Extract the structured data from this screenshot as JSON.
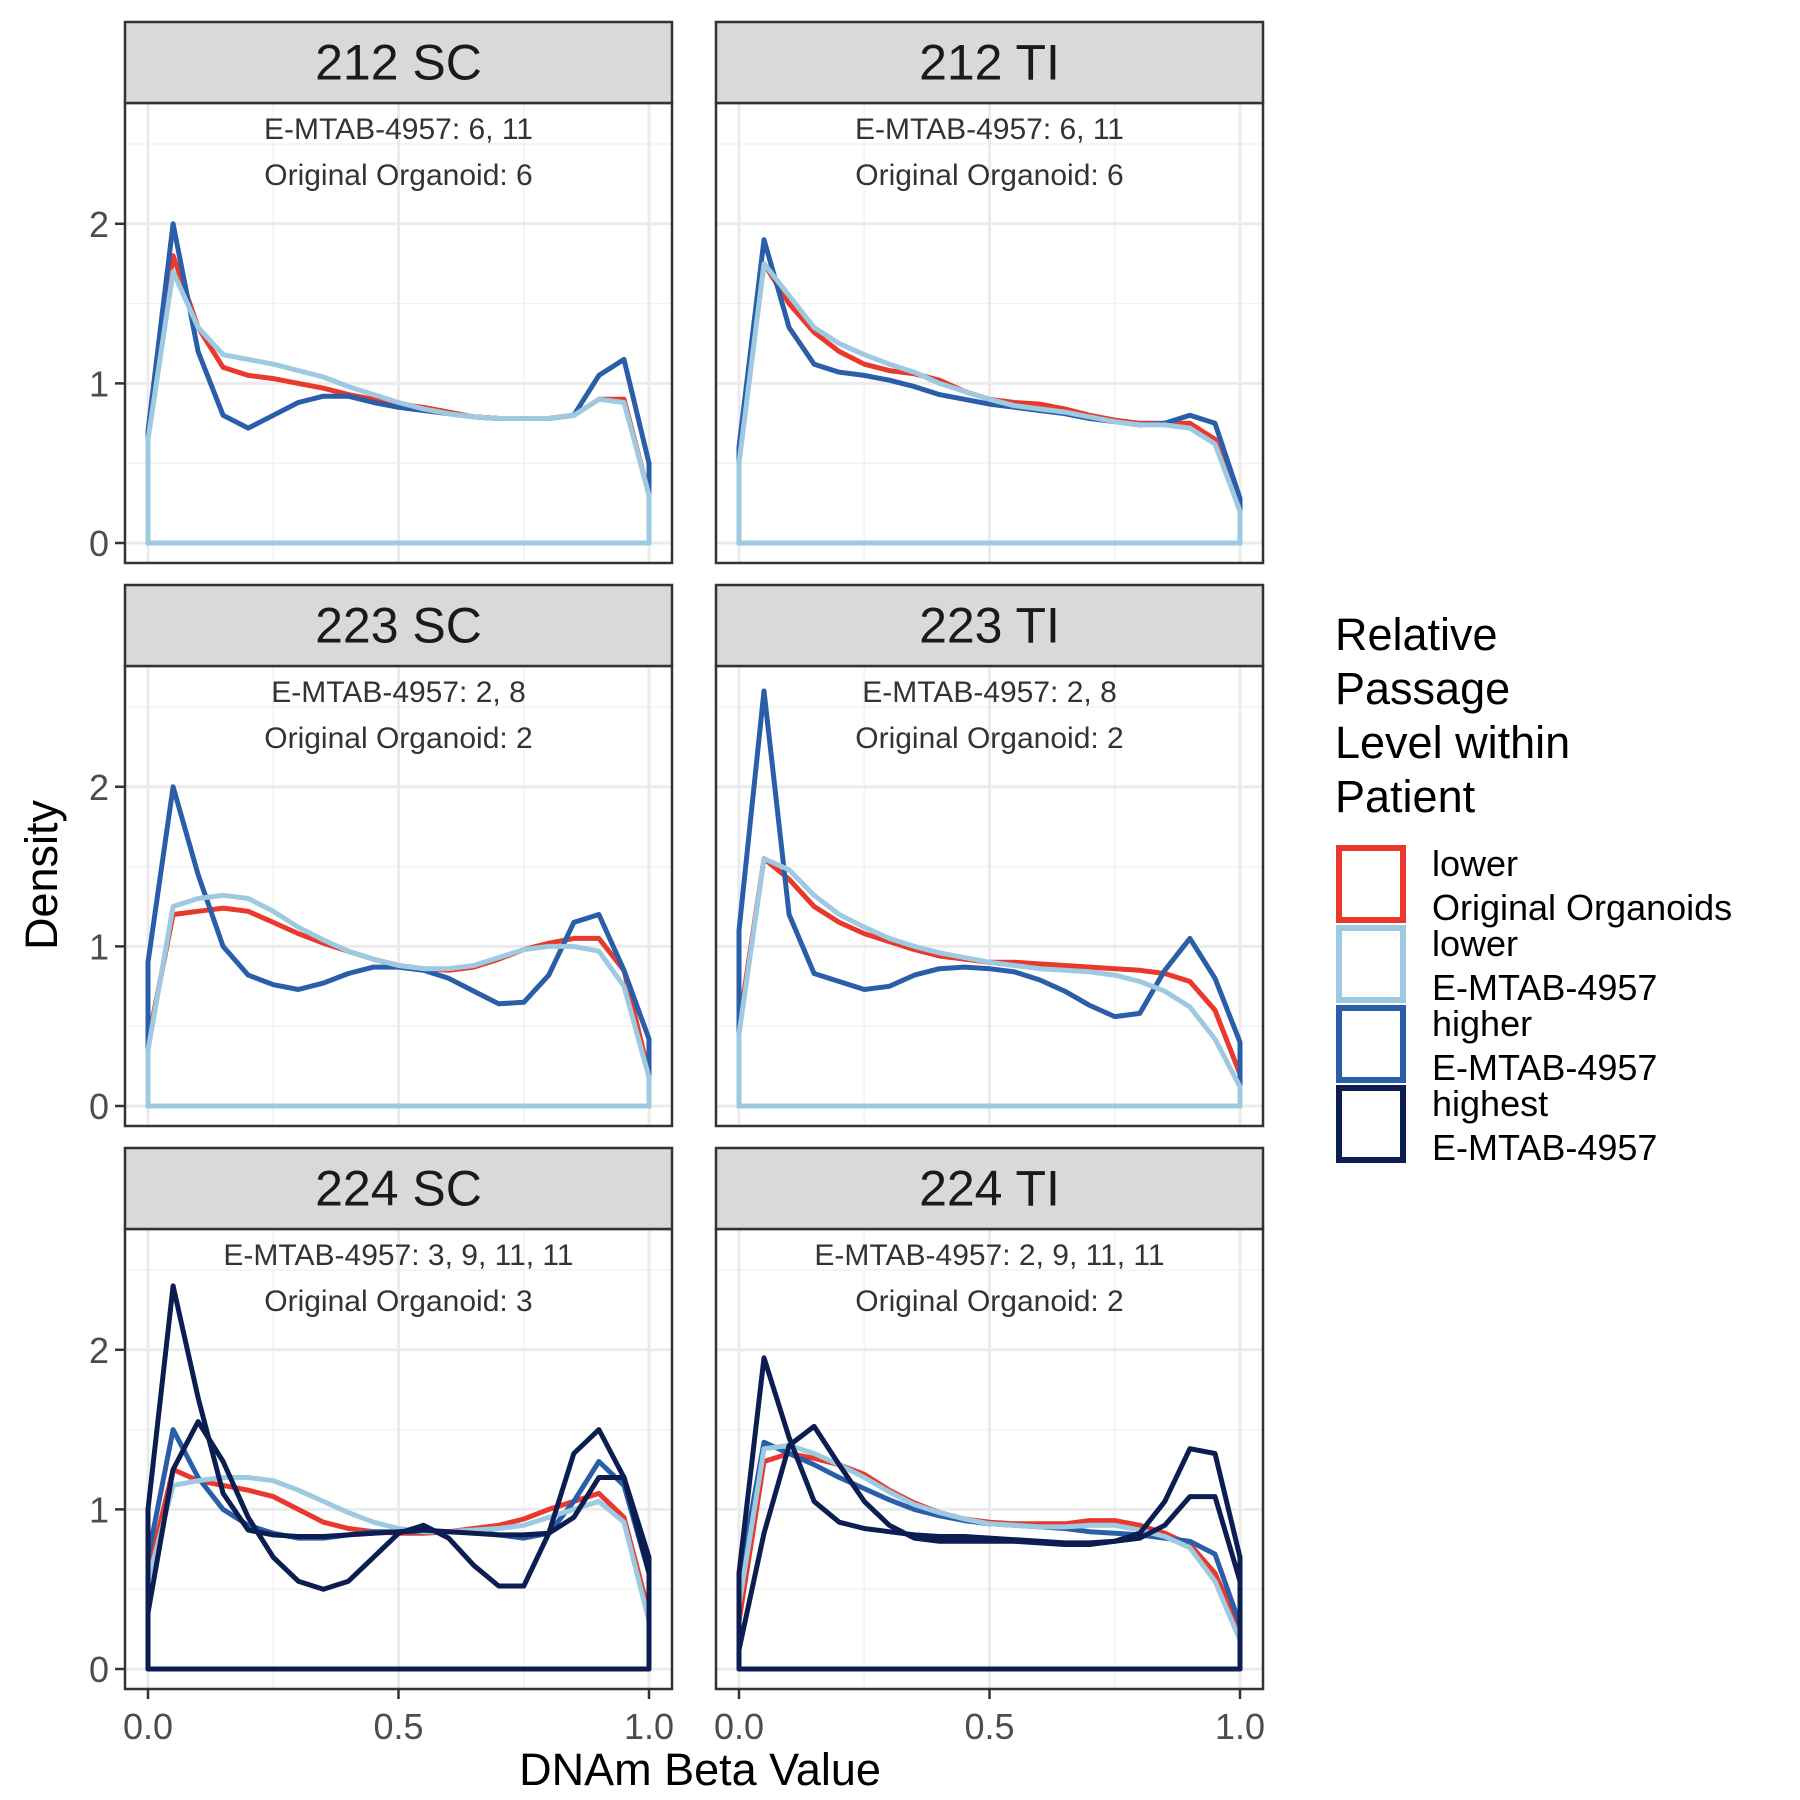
{
  "chart_data": {
    "type": "line",
    "subtype": "faceted density plot",
    "xlabel": "DNAm Beta Value",
    "ylabel": "Density",
    "xlim": [
      0,
      1
    ],
    "ylim": [
      0,
      2.6
    ],
    "x_ticks": [
      0.0,
      0.5,
      1.0
    ],
    "x_tick_labels": [
      "0.0",
      "0.5",
      "1.0"
    ],
    "y_ticks": [
      0,
      1,
      2
    ],
    "y_tick_labels": [
      "0",
      "1",
      "2"
    ],
    "grid": true,
    "legend": {
      "title_lines": [
        "Relative",
        "Passage",
        "Level within",
        "Patient"
      ],
      "placement": "right",
      "entries": [
        {
          "key": "lower_oo",
          "lines": [
            "lower",
            "Original Organoids"
          ],
          "color": "#e8392c"
        },
        {
          "key": "lower_em",
          "lines": [
            "lower",
            "E-MTAB-4957"
          ],
          "color": "#9ecae1"
        },
        {
          "key": "higher_em",
          "lines": [
            "higher",
            "E-MTAB-4957"
          ],
          "color": "#2a5ea8"
        },
        {
          "key": "highest_em",
          "lines": [
            "highest",
            "E-MTAB-4957"
          ],
          "color": "#0b1d51"
        }
      ]
    },
    "x": [
      0.0,
      0.05,
      0.1,
      0.15,
      0.2,
      0.25,
      0.3,
      0.35,
      0.4,
      0.45,
      0.5,
      0.55,
      0.6,
      0.65,
      0.7,
      0.75,
      0.8,
      0.85,
      0.9,
      0.95,
      1.0
    ],
    "panels": [
      {
        "strip": "212 SC",
        "annotation_lines": [
          "E-MTAB-4957: 6, 11",
          "Original Organoid: 6"
        ],
        "series": [
          {
            "key": "lower_oo",
            "values": [
              0.7,
              1.8,
              1.35,
              1.1,
              1.05,
              1.03,
              1.0,
              0.97,
              0.93,
              0.9,
              0.87,
              0.85,
              0.82,
              0.79,
              0.78,
              0.78,
              0.78,
              0.8,
              0.9,
              0.9,
              0.3
            ]
          },
          {
            "key": "higher_em",
            "values": [
              0.7,
              2.0,
              1.2,
              0.8,
              0.72,
              0.8,
              0.88,
              0.92,
              0.92,
              0.88,
              0.85,
              0.83,
              0.81,
              0.79,
              0.78,
              0.78,
              0.78,
              0.8,
              1.05,
              1.15,
              0.5
            ]
          },
          {
            "key": "lower_em",
            "values": [
              0.65,
              1.7,
              1.35,
              1.18,
              1.15,
              1.12,
              1.08,
              1.04,
              0.98,
              0.93,
              0.88,
              0.84,
              0.81,
              0.79,
              0.78,
              0.78,
              0.78,
              0.8,
              0.9,
              0.88,
              0.3
            ]
          }
        ]
      },
      {
        "strip": "212 TI",
        "annotation_lines": [
          "E-MTAB-4957: 6, 11",
          "Original Organoid: 6"
        ],
        "series": [
          {
            "key": "lower_oo",
            "values": [
              0.55,
              1.75,
              1.5,
              1.32,
              1.2,
              1.12,
              1.08,
              1.06,
              1.02,
              0.95,
              0.9,
              0.88,
              0.87,
              0.84,
              0.8,
              0.77,
              0.75,
              0.75,
              0.75,
              0.65,
              0.2
            ]
          },
          {
            "key": "higher_em",
            "values": [
              0.6,
              1.9,
              1.35,
              1.12,
              1.07,
              1.05,
              1.02,
              0.98,
              0.93,
              0.9,
              0.87,
              0.85,
              0.83,
              0.81,
              0.78,
              0.76,
              0.74,
              0.75,
              0.8,
              0.75,
              0.28
            ]
          },
          {
            "key": "lower_em",
            "values": [
              0.5,
              1.75,
              1.55,
              1.35,
              1.25,
              1.18,
              1.12,
              1.07,
              1.0,
              0.95,
              0.9,
              0.86,
              0.84,
              0.82,
              0.79,
              0.76,
              0.74,
              0.74,
              0.72,
              0.62,
              0.2
            ]
          }
        ]
      },
      {
        "strip": "223 SC",
        "annotation_lines": [
          "E-MTAB-4957: 2, 8",
          "Original Organoid: 2"
        ],
        "series": [
          {
            "key": "lower_oo",
            "values": [
              0.4,
              1.2,
              1.22,
              1.24,
              1.22,
              1.15,
              1.08,
              1.02,
              0.97,
              0.92,
              0.88,
              0.86,
              0.85,
              0.87,
              0.92,
              0.98,
              1.02,
              1.05,
              1.05,
              0.85,
              0.2
            ]
          },
          {
            "key": "higher_em",
            "values": [
              0.9,
              2.0,
              1.45,
              1.0,
              0.82,
              0.76,
              0.73,
              0.77,
              0.83,
              0.87,
              0.87,
              0.85,
              0.8,
              0.72,
              0.64,
              0.65,
              0.82,
              1.15,
              1.2,
              0.85,
              0.42
            ]
          },
          {
            "key": "lower_em",
            "values": [
              0.35,
              1.25,
              1.3,
              1.32,
              1.3,
              1.22,
              1.12,
              1.04,
              0.97,
              0.92,
              0.88,
              0.86,
              0.86,
              0.88,
              0.93,
              0.98,
              1.0,
              1.0,
              0.97,
              0.75,
              0.18
            ]
          }
        ]
      },
      {
        "strip": "223 TI",
        "annotation_lines": [
          "E-MTAB-4957: 2, 8",
          "Original Organoid: 2"
        ],
        "series": [
          {
            "key": "lower_oo",
            "values": [
              0.5,
              1.55,
              1.42,
              1.25,
              1.15,
              1.08,
              1.03,
              0.98,
              0.94,
              0.92,
              0.9,
              0.9,
              0.89,
              0.88,
              0.87,
              0.86,
              0.85,
              0.83,
              0.78,
              0.6,
              0.2
            ]
          },
          {
            "key": "higher_em",
            "values": [
              1.1,
              2.6,
              1.2,
              0.83,
              0.78,
              0.73,
              0.75,
              0.82,
              0.86,
              0.87,
              0.86,
              0.84,
              0.79,
              0.72,
              0.63,
              0.56,
              0.58,
              0.85,
              1.05,
              0.8,
              0.4
            ]
          },
          {
            "key": "lower_em",
            "values": [
              0.45,
              1.55,
              1.48,
              1.32,
              1.2,
              1.12,
              1.05,
              1.0,
              0.96,
              0.93,
              0.9,
              0.88,
              0.86,
              0.85,
              0.84,
              0.82,
              0.78,
              0.72,
              0.62,
              0.42,
              0.12
            ]
          }
        ]
      },
      {
        "strip": "224 SC",
        "annotation_lines": [
          "E-MTAB-4957: 3, 9, 11, 11",
          "Original Organoid: 3"
        ],
        "series": [
          {
            "key": "lower_oo",
            "values": [
              0.6,
              1.25,
              1.18,
              1.15,
              1.12,
              1.08,
              1.0,
              0.92,
              0.88,
              0.86,
              0.85,
              0.85,
              0.86,
              0.88,
              0.9,
              0.94,
              1.0,
              1.05,
              1.1,
              0.95,
              0.35
            ]
          },
          {
            "key": "higher_em",
            "values": [
              0.7,
              1.5,
              1.2,
              1.0,
              0.9,
              0.85,
              0.82,
              0.82,
              0.84,
              0.86,
              0.86,
              0.86,
              0.86,
              0.86,
              0.84,
              0.82,
              0.85,
              1.05,
              1.3,
              1.15,
              0.6
            ]
          },
          {
            "key": "lower_em",
            "values": [
              0.55,
              1.15,
              1.18,
              1.2,
              1.2,
              1.18,
              1.12,
              1.05,
              0.98,
              0.92,
              0.88,
              0.86,
              0.86,
              0.87,
              0.88,
              0.9,
              0.95,
              1.0,
              1.05,
              0.92,
              0.3
            ]
          },
          {
            "key": "highest_em",
            "values": [
              1.0,
              2.4,
              1.7,
              1.1,
              0.87,
              0.84,
              0.83,
              0.83,
              0.84,
              0.85,
              0.86,
              0.87,
              0.86,
              0.85,
              0.84,
              0.84,
              0.85,
              0.95,
              1.2,
              1.2,
              0.7
            ]
          },
          {
            "key": "highest_em",
            "values": [
              0.35,
              1.25,
              1.55,
              1.3,
              0.95,
              0.7,
              0.55,
              0.5,
              0.55,
              0.7,
              0.85,
              0.9,
              0.82,
              0.65,
              0.52,
              0.52,
              0.85,
              1.35,
              1.5,
              1.2,
              0.6
            ]
          }
        ]
      },
      {
        "strip": "224 TI",
        "annotation_lines": [
          "E-MTAB-4957: 2, 9, 11, 11",
          "Original Organoid: 2"
        ],
        "series": [
          {
            "key": "lower_oo",
            "values": [
              0.3,
              1.3,
              1.35,
              1.32,
              1.28,
              1.22,
              1.12,
              1.04,
              0.98,
              0.94,
              0.92,
              0.91,
              0.91,
              0.91,
              0.93,
              0.93,
              0.9,
              0.85,
              0.78,
              0.6,
              0.25
            ]
          },
          {
            "key": "higher_em",
            "values": [
              0.55,
              1.42,
              1.35,
              1.28,
              1.2,
              1.13,
              1.06,
              1.0,
              0.96,
              0.93,
              0.91,
              0.9,
              0.89,
              0.88,
              0.86,
              0.85,
              0.84,
              0.82,
              0.8,
              0.72,
              0.28
            ]
          },
          {
            "key": "lower_em",
            "values": [
              0.4,
              1.38,
              1.4,
              1.35,
              1.28,
              1.2,
              1.11,
              1.03,
              0.98,
              0.94,
              0.91,
              0.9,
              0.89,
              0.89,
              0.9,
              0.9,
              0.87,
              0.83,
              0.76,
              0.55,
              0.18
            ]
          },
          {
            "key": "highest_em",
            "values": [
              0.6,
              1.95,
              1.45,
              1.05,
              0.92,
              0.88,
              0.86,
              0.84,
              0.83,
              0.83,
              0.82,
              0.81,
              0.8,
              0.79,
              0.79,
              0.8,
              0.82,
              0.9,
              1.08,
              1.08,
              0.55
            ]
          },
          {
            "key": "highest_em",
            "values": [
              0.12,
              0.85,
              1.4,
              1.52,
              1.28,
              1.05,
              0.9,
              0.82,
              0.8,
              0.8,
              0.8,
              0.8,
              0.79,
              0.78,
              0.78,
              0.8,
              0.85,
              1.05,
              1.38,
              1.35,
              0.7
            ]
          }
        ]
      }
    ]
  }
}
